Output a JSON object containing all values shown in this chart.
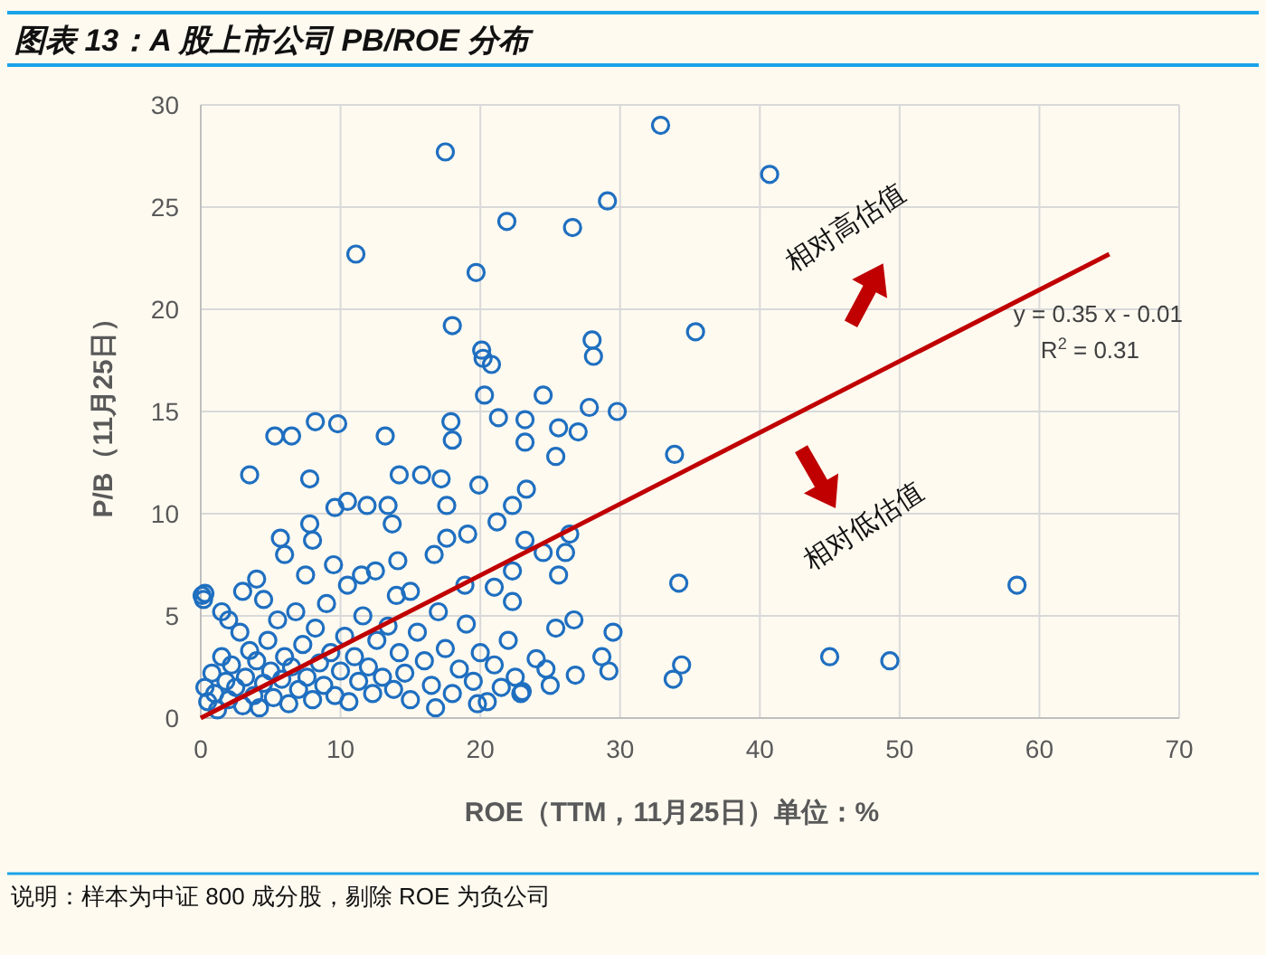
{
  "chart_data": {
    "type": "scatter",
    "title": "图表 13：A 股上市公司 PB/ROE 分布",
    "xlabel": "ROE（TTM，11月25日）单位：%",
    "ylabel": "P/B（11月25日）",
    "xlim": [
      0,
      70
    ],
    "xticks": [
      0,
      10,
      20,
      30,
      40,
      50,
      60,
      70
    ],
    "ylim": [
      0,
      30
    ],
    "yticks": [
      0,
      5,
      10,
      15,
      20,
      25,
      30
    ],
    "grid": true,
    "marker": "circle",
    "series": [
      {
        "color": "#1f6fc0",
        "x": [
          17.5,
          32.9,
          40.7,
          29.1,
          21.9,
          26.6,
          11.1,
          19.7,
          18.0,
          35.4,
          20.1,
          20.2,
          20.8,
          20.3,
          24.5,
          28.1,
          28.0,
          27.8,
          29.8,
          5.3,
          6.5,
          8.2,
          9.8,
          13.2,
          3.5,
          7.8,
          17.9,
          18.0,
          21.3,
          23.2,
          25.6,
          27.0,
          23.2,
          25.4,
          33.9,
          14.2,
          15.8,
          17.2,
          19.9,
          23.3,
          9.6,
          10.5,
          11.9,
          13.4,
          17.6,
          22.3,
          7.8,
          13.7,
          21.2,
          5.7,
          8.0,
          6.0,
          17.6,
          19.1,
          23.2,
          26.4,
          24.5,
          26.1,
          25.6,
          22.3,
          34.2,
          0.3,
          4.0,
          11.5,
          14.1,
          16.7,
          18.9,
          15.0,
          21.0,
          22.3,
          25.4,
          26.7,
          29.5,
          28.7,
          29.2,
          26.8,
          24.7,
          22.5,
          22.9,
          33.8,
          34.4,
          58.4,
          45.0,
          49.3,
          0.3,
          0.5,
          0.8,
          1,
          1.2,
          1.5,
          1.8,
          2,
          2.2,
          2.5,
          2.8,
          3,
          3.2,
          3.5,
          3.8,
          4,
          4.2,
          4.5,
          4.8,
          5,
          5.2,
          5.5,
          5.8,
          6,
          6.3,
          6.5,
          6.8,
          7,
          7.3,
          7.6,
          8,
          8.2,
          8.5,
          8.8,
          9,
          9.3,
          9.6,
          10,
          10.3,
          10.6,
          11,
          11.3,
          11.6,
          12,
          12.3,
          12.6,
          13,
          13.4,
          13.8,
          14.2,
          14.6,
          15,
          15.5,
          16,
          16.5,
          17,
          17.5,
          18,
          18.5,
          19,
          19.5,
          20,
          20.5,
          21,
          21.5,
          22,
          23,
          24,
          25,
          19.8,
          16.8,
          0.1,
          0.2,
          1.5,
          3,
          4.5,
          7.5,
          9.5,
          10.5,
          12.5,
          14,
          2
        ],
        "values": [
          27.7,
          29.0,
          26.6,
          25.3,
          24.3,
          24.0,
          22.7,
          21.8,
          19.2,
          18.9,
          18.0,
          17.6,
          17.3,
          15.8,
          15.8,
          17.7,
          18.5,
          15.2,
          15.0,
          13.8,
          13.8,
          14.5,
          14.4,
          13.8,
          11.9,
          11.7,
          14.5,
          13.6,
          14.7,
          14.6,
          14.2,
          14.0,
          13.5,
          12.8,
          12.9,
          11.9,
          11.9,
          11.7,
          11.4,
          11.2,
          10.3,
          10.6,
          10.4,
          10.4,
          10.4,
          10.4,
          9.5,
          9.5,
          9.6,
          8.8,
          8.7,
          8.0,
          8.8,
          9.0,
          8.7,
          9.0,
          8.1,
          8.1,
          7.0,
          7.2,
          6.6,
          6.1,
          6.8,
          7.0,
          7.7,
          8.0,
          6.5,
          6.2,
          6.4,
          5.7,
          4.4,
          4.8,
          4.2,
          3.0,
          2.3,
          2.1,
          2.4,
          2.0,
          1.2,
          1.9,
          2.6,
          6.5,
          3.0,
          2.8,
          1.5,
          0.8,
          2.2,
          1.2,
          0.4,
          3,
          1.8,
          0.9,
          2.6,
          1.5,
          4.2,
          0.6,
          2,
          3.3,
          1.1,
          2.8,
          0.5,
          1.7,
          3.8,
          2.3,
          1,
          4.8,
          1.9,
          3,
          0.7,
          2.5,
          5.2,
          1.4,
          3.6,
          2,
          0.9,
          4.4,
          2.7,
          1.6,
          5.6,
          3.2,
          1.1,
          2.3,
          4,
          0.8,
          3,
          1.8,
          5,
          2.5,
          1.2,
          3.8,
          2,
          4.5,
          1.4,
          3.2,
          2.2,
          0.9,
          4.2,
          2.8,
          1.6,
          5.2,
          3.4,
          1.2,
          2.4,
          4.6,
          1.8,
          3.2,
          0.8,
          2.6,
          1.5,
          3.8,
          1.3,
          2.9,
          1.6,
          0.7,
          0.5,
          6,
          5.8,
          5.2,
          6.2,
          5.8,
          7,
          7.5,
          6.5,
          7.2,
          6,
          4.8
        ]
      },
      {
        "type": "line",
        "color": "#c00000",
        "x": [
          0,
          65
        ],
        "values": [
          0,
          22.7
        ],
        "marker": "none",
        "line_style": "solid"
      }
    ],
    "annotations": [
      "相对高估值",
      "相对低估值",
      "y = 0.35 x - 0.01",
      "R$^{2}$ = 0.31",
      "说明：样本为中证 800 成分股，剔除 ROE 为负公司"
    ]
  }
}
